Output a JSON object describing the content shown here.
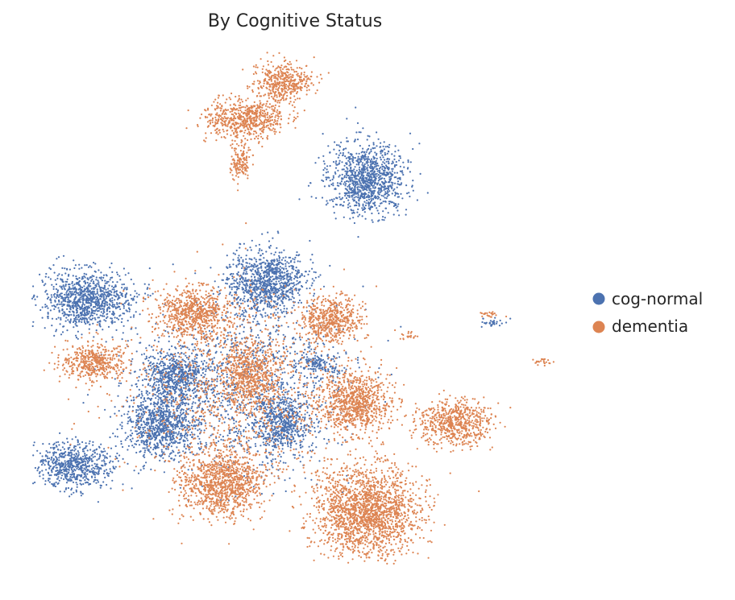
{
  "chart_data": {
    "type": "scatter",
    "title": "By Cognitive Status",
    "xlabel": "",
    "ylabel": "",
    "axes_visible": false,
    "grid": false,
    "legend_position": "right",
    "legend": [
      "cog-normal",
      "dementia"
    ],
    "series": [
      {
        "name": "cog-normal",
        "color": "#4c72b0",
        "clusters": [
          {
            "cx": 455,
            "cy": 222,
            "rx": 48,
            "ry": 44,
            "density": 0.9
          },
          {
            "cx": 108,
            "cy": 372,
            "rx": 55,
            "ry": 36,
            "density": 0.9
          },
          {
            "cx": 330,
            "cy": 350,
            "rx": 48,
            "ry": 40,
            "density": 0.9
          },
          {
            "cx": 218,
            "cy": 466,
            "rx": 40,
            "ry": 30,
            "density": 0.9
          },
          {
            "cx": 200,
            "cy": 527,
            "rx": 45,
            "ry": 40,
            "density": 0.9
          },
          {
            "cx": 93,
            "cy": 577,
            "rx": 48,
            "ry": 28,
            "density": 0.9
          },
          {
            "cx": 350,
            "cy": 525,
            "rx": 35,
            "ry": 35,
            "density": 0.8
          },
          {
            "cx": 395,
            "cy": 452,
            "rx": 25,
            "ry": 15,
            "density": 0.7
          },
          {
            "cx": 300,
            "cy": 480,
            "rx": 130,
            "ry": 110,
            "density": 0.15
          },
          {
            "cx": 612,
            "cy": 401,
            "rx": 15,
            "ry": 5,
            "density": 0.8
          }
        ]
      },
      {
        "name": "dementia",
        "color": "#dd8452",
        "clusters": [
          {
            "cx": 350,
            "cy": 103,
            "rx": 35,
            "ry": 25,
            "density": 0.9
          },
          {
            "cx": 305,
            "cy": 148,
            "rx": 50,
            "ry": 25,
            "density": 0.9
          },
          {
            "cx": 298,
            "cy": 200,
            "rx": 14,
            "ry": 22,
            "density": 0.8
          },
          {
            "cx": 240,
            "cy": 388,
            "rx": 45,
            "ry": 30,
            "density": 0.9
          },
          {
            "cx": 410,
            "cy": 397,
            "rx": 38,
            "ry": 28,
            "density": 0.9
          },
          {
            "cx": 118,
            "cy": 450,
            "rx": 42,
            "ry": 22,
            "density": 0.9
          },
          {
            "cx": 310,
            "cy": 465,
            "rx": 35,
            "ry": 40,
            "density": 0.7
          },
          {
            "cx": 440,
            "cy": 500,
            "rx": 45,
            "ry": 38,
            "density": 0.9
          },
          {
            "cx": 565,
            "cy": 525,
            "rx": 45,
            "ry": 28,
            "density": 0.9
          },
          {
            "cx": 275,
            "cy": 600,
            "rx": 50,
            "ry": 42,
            "density": 0.9
          },
          {
            "cx": 455,
            "cy": 635,
            "rx": 65,
            "ry": 55,
            "density": 0.95
          },
          {
            "cx": 300,
            "cy": 480,
            "rx": 140,
            "ry": 120,
            "density": 0.12
          },
          {
            "cx": 505,
            "cy": 418,
            "rx": 10,
            "ry": 6,
            "density": 0.6
          },
          {
            "cx": 672,
            "cy": 450,
            "rx": 12,
            "ry": 5,
            "density": 0.7
          },
          {
            "cx": 605,
            "cy": 390,
            "rx": 14,
            "ry": 5,
            "density": 0.6
          }
        ]
      }
    ]
  }
}
